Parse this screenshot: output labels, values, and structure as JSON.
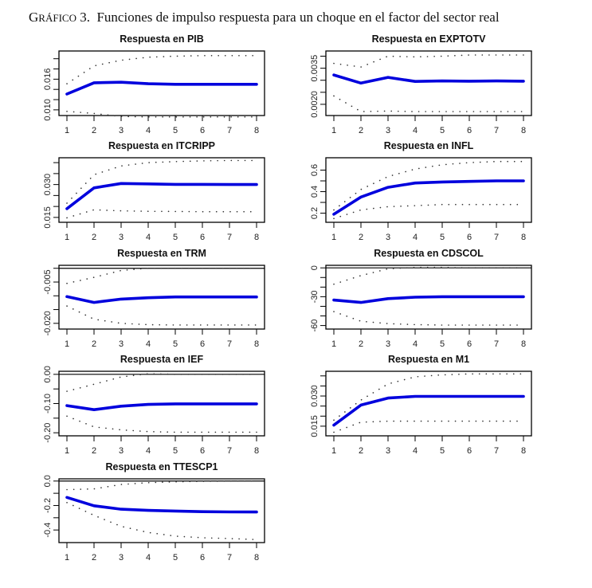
{
  "figure": {
    "label_prefix": "G",
    "label_rest": "RÁFICO",
    "label_number": "3.",
    "title": "Funciones de impulso respuesta para un choque en el factor del sector real"
  },
  "colors": {
    "response": "#0000dd",
    "bands": "#333333",
    "axis": "#000000"
  },
  "chart_data": [
    {
      "type": "line",
      "title": "Respuesta en PIB",
      "x": [
        1,
        2,
        3,
        4,
        5,
        6,
        7,
        8
      ],
      "ylim": [
        0.0092,
        0.0212
      ],
      "yticks": [
        0.01,
        0.012,
        0.014,
        0.016,
        0.018,
        0.02
      ],
      "ytick_labels": [
        "0.010",
        "",
        "",
        "0.016",
        "",
        ""
      ],
      "zero_line": false,
      "series": [
        {
          "name": "response",
          "values": [
            0.0131,
            0.0153,
            0.0154,
            0.0151,
            0.015,
            0.015,
            0.015,
            0.015
          ]
        },
        {
          "name": "upper",
          "values": [
            0.0151,
            0.0186,
            0.0197,
            0.0203,
            0.0205,
            0.0206,
            0.0206,
            0.0206
          ]
        },
        {
          "name": "lower",
          "values": [
            0.0097,
            0.0093,
            0.0087,
            0.0086,
            0.0086,
            0.0086,
            0.0086,
            0.0086
          ]
        }
      ]
    },
    {
      "type": "line",
      "title": "Respuesta en EXPTOTV",
      "x": [
        1,
        2,
        3,
        4,
        5,
        6,
        7,
        8
      ],
      "ylim": [
        0.0016,
        0.00415
      ],
      "yticks": [
        0.002,
        0.0025,
        0.003,
        0.0035,
        0.004
      ],
      "ytick_labels": [
        "0.0020",
        "",
        "",
        "0.0035",
        ""
      ],
      "zero_line": false,
      "series": [
        {
          "name": "response",
          "values": [
            0.00322,
            0.00288,
            0.00312,
            0.00295,
            0.00297,
            0.00296,
            0.00297,
            0.00296
          ]
        },
        {
          "name": "upper",
          "values": [
            0.0037,
            0.00355,
            0.004,
            0.00397,
            0.004,
            0.00405,
            0.00405,
            0.00405
          ]
        },
        {
          "name": "lower",
          "values": [
            0.00235,
            0.0017,
            0.00172,
            0.0017,
            0.0017,
            0.0017,
            0.0017,
            0.0017
          ]
        }
      ]
    },
    {
      "type": "line",
      "title": "Respuesta en ITCRIPP",
      "x": [
        1,
        2,
        3,
        4,
        5,
        6,
        7,
        8
      ],
      "ylim": [
        0.0135,
        0.0415
      ],
      "yticks": [
        0.015,
        0.02,
        0.025,
        0.03,
        0.035,
        0.04
      ],
      "ytick_labels": [
        "0.015",
        "",
        "",
        "0.030",
        "",
        ""
      ],
      "zero_line": false,
      "series": [
        {
          "name": "response",
          "values": [
            0.019,
            0.0285,
            0.0305,
            0.0303,
            0.0301,
            0.0301,
            0.03,
            0.03
          ]
        },
        {
          "name": "upper",
          "values": [
            0.0215,
            0.0345,
            0.0385,
            0.04,
            0.0405,
            0.0408,
            0.041,
            0.041
          ]
        },
        {
          "name": "lower",
          "values": [
            0.0148,
            0.0185,
            0.018,
            0.0178,
            0.0177,
            0.0176,
            0.0176,
            0.0176
          ]
        }
      ]
    },
    {
      "type": "line",
      "title": "Respuesta en INFL",
      "x": [
        1,
        2,
        3,
        4,
        5,
        6,
        7,
        8
      ],
      "ylim": [
        0.13,
        0.7
      ],
      "yticks": [
        0.2,
        0.3,
        0.4,
        0.5,
        0.6
      ],
      "ytick_labels": [
        "0.2",
        "",
        "0.4",
        "",
        "0.6"
      ],
      "zero_line": false,
      "series": [
        {
          "name": "response",
          "values": [
            0.19,
            0.35,
            0.44,
            0.48,
            0.49,
            0.495,
            0.5,
            0.5
          ]
        },
        {
          "name": "upper",
          "values": [
            0.23,
            0.42,
            0.54,
            0.61,
            0.65,
            0.67,
            0.68,
            0.68
          ]
        },
        {
          "name": "lower",
          "values": [
            0.15,
            0.23,
            0.26,
            0.27,
            0.28,
            0.28,
            0.28,
            0.28
          ]
        }
      ]
    },
    {
      "type": "line",
      "title": "Respuesta en TRM",
      "x": [
        1,
        2,
        3,
        4,
        5,
        6,
        7,
        8
      ],
      "ylim": [
        -0.0215,
        0.0005
      ],
      "yticks": [
        -0.02,
        -0.015,
        -0.01,
        -0.005,
        0.0
      ],
      "ytick_labels": [
        "-0.020",
        "",
        "",
        "-0.005",
        ""
      ],
      "zero_line": true,
      "series": [
        {
          "name": "response",
          "values": [
            -0.0103,
            -0.0124,
            -0.0112,
            -0.0107,
            -0.0104,
            -0.0104,
            -0.0104,
            -0.0104
          ]
        },
        {
          "name": "upper",
          "values": [
            -0.0055,
            -0.0033,
            -0.0008,
            0.0,
            0.0,
            0.0,
            0.0,
            0.0
          ]
        },
        {
          "name": "lower",
          "values": [
            -0.0137,
            -0.0185,
            -0.02,
            -0.0205,
            -0.0206,
            -0.0206,
            -0.0206,
            -0.0206
          ]
        }
      ]
    },
    {
      "type": "line",
      "title": "Respuesta en CDSCOL",
      "x": [
        1,
        2,
        3,
        4,
        5,
        6,
        7,
        8
      ],
      "ylim": [
        -62,
        1
      ],
      "yticks": [
        -60,
        -50,
        -40,
        -30,
        -20,
        -10,
        0
      ],
      "ytick_labels": [
        "-60",
        "",
        "",
        "-30",
        "",
        "",
        "0"
      ],
      "zero_line": true,
      "series": [
        {
          "name": "response",
          "values": [
            -33.5,
            -36,
            -32,
            -30.5,
            -30,
            -30,
            -30,
            -30
          ]
        },
        {
          "name": "upper",
          "values": [
            -17,
            -8,
            -1,
            0.5,
            0.5,
            0,
            0,
            0
          ]
        },
        {
          "name": "lower",
          "values": [
            -45.5,
            -55.5,
            -58,
            -59,
            -59.5,
            -59.5,
            -59.5,
            -59.5
          ]
        }
      ]
    },
    {
      "type": "line",
      "title": "Respuesta en IEF",
      "x": [
        1,
        2,
        3,
        4,
        5,
        6,
        7,
        8
      ],
      "ylim": [
        -0.205,
        0.005
      ],
      "yticks": [
        -0.2,
        -0.15,
        -0.1,
        -0.05,
        0.0
      ],
      "ytick_labels": [
        "-0.20",
        "",
        "-0.10",
        "",
        "0.00"
      ],
      "zero_line": true,
      "series": [
        {
          "name": "response",
          "values": [
            -0.107,
            -0.121,
            -0.109,
            -0.103,
            -0.101,
            -0.101,
            -0.101,
            -0.101
          ]
        },
        {
          "name": "upper",
          "values": [
            -0.058,
            -0.034,
            -0.009,
            0.002,
            0.0,
            0.0,
            0.0,
            0.0
          ]
        },
        {
          "name": "lower",
          "values": [
            -0.143,
            -0.18,
            -0.19,
            -0.196,
            -0.198,
            -0.198,
            -0.198,
            -0.198
          ]
        }
      ]
    },
    {
      "type": "line",
      "title": "Respuesta en M1",
      "x": [
        1,
        2,
        3,
        4,
        5,
        6,
        7,
        8
      ],
      "ylim": [
        0.011,
        0.0415
      ],
      "yticks": [
        0.015,
        0.02,
        0.025,
        0.03,
        0.035,
        0.04
      ],
      "ytick_labels": [
        "0.015",
        "",
        "",
        "0.030",
        "",
        ""
      ],
      "zero_line": false,
      "series": [
        {
          "name": "response",
          "values": [
            0.0155,
            0.0255,
            0.029,
            0.0298,
            0.0298,
            0.0298,
            0.0298,
            0.0298
          ]
        },
        {
          "name": "upper",
          "values": [
            0.018,
            0.028,
            0.036,
            0.0395,
            0.0405,
            0.041,
            0.041,
            0.041
          ]
        },
        {
          "name": "lower",
          "values": [
            0.012,
            0.017,
            0.0175,
            0.0175,
            0.0175,
            0.0175,
            0.0175,
            0.0175
          ]
        }
      ]
    },
    {
      "type": "line",
      "title": "Respuesta en TTESCP1",
      "x": [
        1,
        2,
        3,
        4,
        5,
        6,
        7,
        8
      ],
      "ylim": [
        -0.49,
        0.005
      ],
      "yticks": [
        -0.4,
        -0.3,
        -0.2,
        -0.1,
        0.0
      ],
      "ytick_labels": [
        "-0.4",
        "",
        "-0.2",
        "",
        "0.0"
      ],
      "zero_line": true,
      "series": [
        {
          "name": "response",
          "values": [
            -0.134,
            -0.202,
            -0.23,
            -0.24,
            -0.245,
            -0.25,
            -0.252,
            -0.253
          ]
        },
        {
          "name": "upper",
          "values": [
            -0.07,
            -0.064,
            -0.028,
            -0.013,
            -0.006,
            -0.002,
            0.0,
            0.0
          ]
        },
        {
          "name": "lower",
          "values": [
            -0.176,
            -0.28,
            -0.37,
            -0.42,
            -0.45,
            -0.463,
            -0.47,
            -0.478
          ]
        }
      ]
    }
  ]
}
